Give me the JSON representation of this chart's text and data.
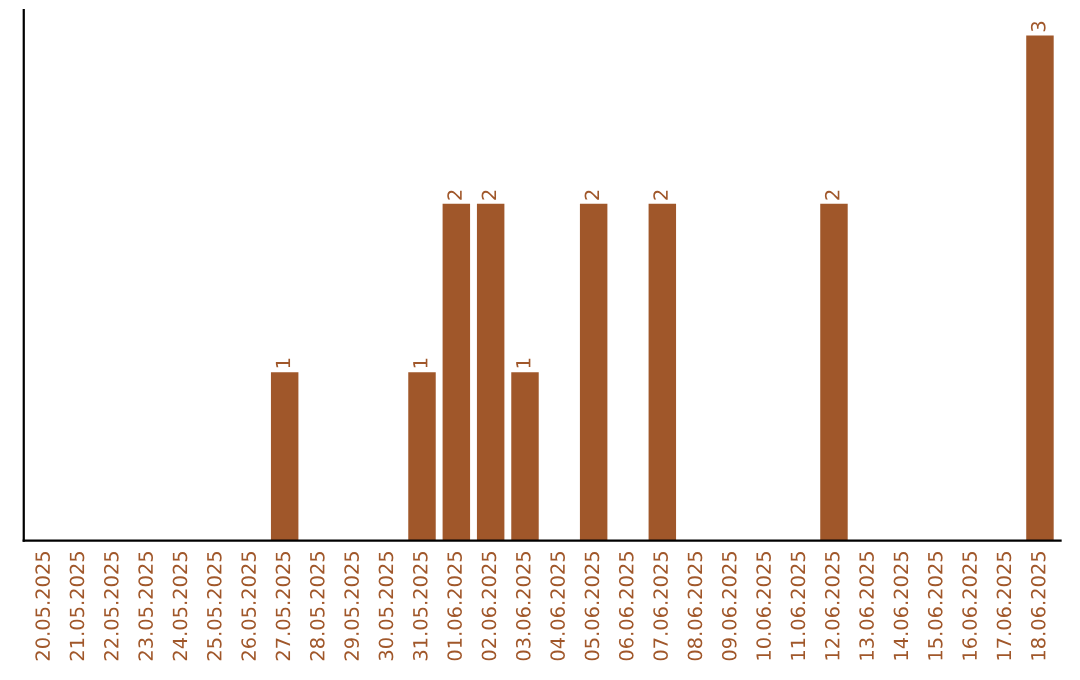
{
  "chart_data": {
    "type": "bar",
    "categories": [
      "20.05.2025",
      "21.05.2025",
      "22.05.2025",
      "23.05.2025",
      "24.05.2025",
      "25.05.2025",
      "26.05.2025",
      "27.05.2025",
      "28.05.2025",
      "29.05.2025",
      "30.05.2025",
      "31.05.2025",
      "01.06.2025",
      "02.06.2025",
      "03.06.2025",
      "04.06.2025",
      "05.06.2025",
      "06.06.2025",
      "07.06.2025",
      "08.06.2025",
      "09.06.2025",
      "10.06.2025",
      "11.06.2025",
      "12.06.2025",
      "13.06.2025",
      "14.06.2025",
      "15.06.2025",
      "16.06.2025",
      "17.06.2025",
      "18.06.2025"
    ],
    "values": [
      0,
      0,
      0,
      0,
      0,
      0,
      0,
      1,
      0,
      0,
      0,
      1,
      2,
      2,
      1,
      0,
      2,
      0,
      2,
      0,
      0,
      0,
      0,
      2,
      0,
      0,
      0,
      0,
      0,
      3
    ],
    "value_labels": [
      null,
      null,
      null,
      null,
      null,
      null,
      null,
      "1",
      null,
      null,
      null,
      "1",
      "2",
      "2",
      "1",
      null,
      "2",
      null,
      "2",
      null,
      null,
      null,
      null,
      "2",
      null,
      null,
      null,
      null,
      null,
      "3"
    ],
    "color": "#a0572a",
    "tick_labels": "x",
    "grid": false
  }
}
